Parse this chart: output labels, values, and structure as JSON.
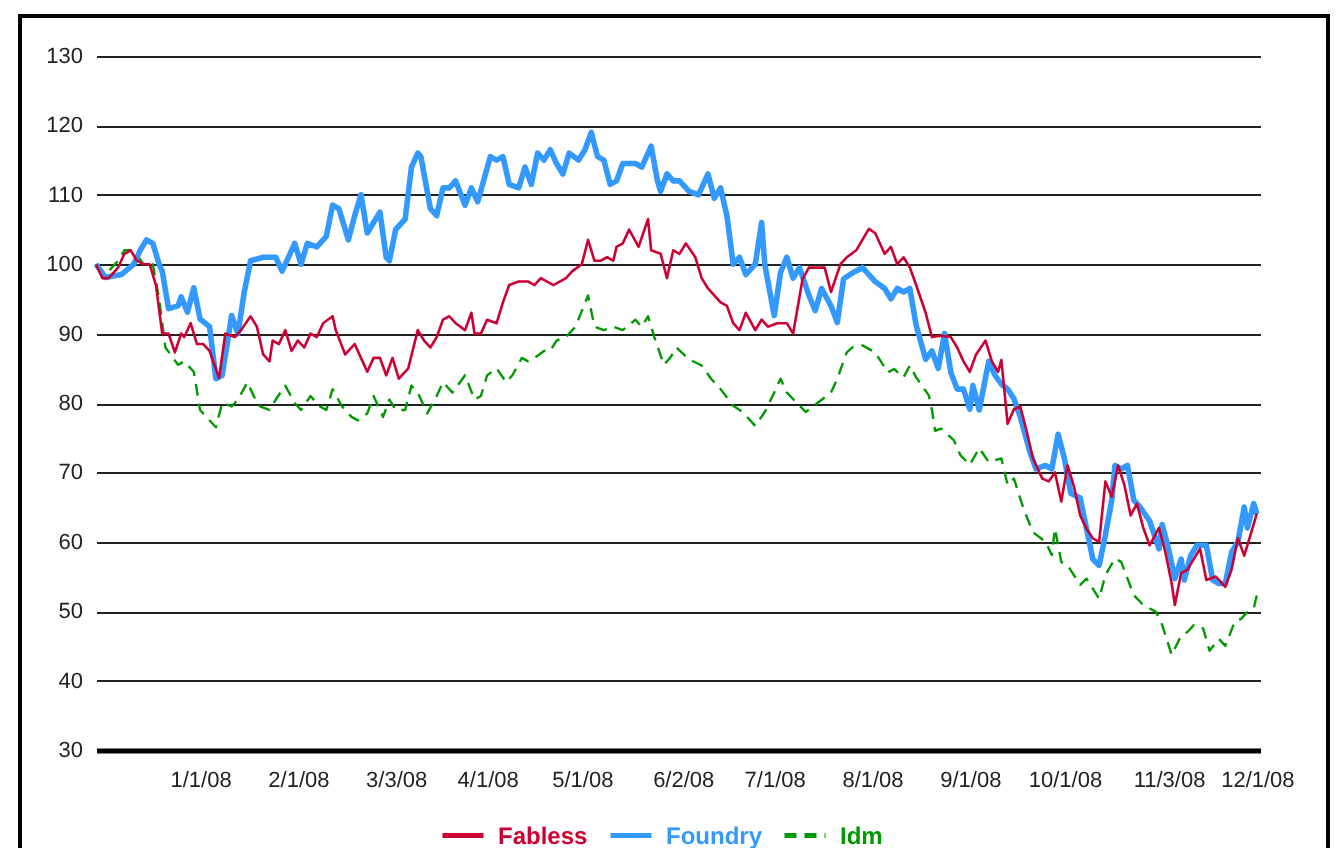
{
  "chart_data": {
    "type": "line",
    "legend": "bottom",
    "grid": "y",
    "marker": "none",
    "xlim": [
      "2007-11-29",
      "2008-12-02"
    ],
    "xticks": [
      {
        "value": "2008-01-01",
        "label": "1/1/08"
      },
      {
        "value": "2008-02-01",
        "label": "2/1/08"
      },
      {
        "value": "2008-03-03",
        "label": "3/3/08"
      },
      {
        "value": "2008-04-01",
        "label": "4/1/08"
      },
      {
        "value": "2008-05-01",
        "label": "5/1/08"
      },
      {
        "value": "2008-06-02",
        "label": "6/2/08"
      },
      {
        "value": "2008-07-01",
        "label": "7/1/08"
      },
      {
        "value": "2008-08-01",
        "label": "8/1/08"
      },
      {
        "value": "2008-09-01",
        "label": "9/1/08"
      },
      {
        "value": "2008-10-01",
        "label": "10/1/08"
      },
      {
        "value": "2008-11-03",
        "label": "11/3/08"
      },
      {
        "value": "2008-12-01",
        "label": "12/1/08"
      }
    ],
    "ylim": [
      30,
      130
    ],
    "yticks": [
      30,
      40,
      50,
      60,
      70,
      80,
      90,
      100,
      110,
      120,
      130
    ],
    "series": [
      {
        "name": "Fabless",
        "color": "#cc0033",
        "line_style": "solid",
        "x": [
          "2007-11-29",
          "2007-12-01",
          "2007-12-03",
          "2007-12-06",
          "2007-12-08",
          "2007-12-10",
          "2007-12-12",
          "2007-12-14",
          "2007-12-16",
          "2007-12-18",
          "2007-12-20",
          "2007-12-22",
          "2007-12-24",
          "2007-12-26",
          "2007-12-27",
          "2007-12-29",
          "2007-12-31",
          "2008-01-02",
          "2008-01-04",
          "2008-01-07",
          "2008-01-09",
          "2008-01-12",
          "2008-01-14",
          "2008-01-17",
          "2008-01-19",
          "2008-01-21",
          "2008-01-23",
          "2008-01-24",
          "2008-01-26",
          "2008-01-28",
          "2008-01-30",
          "2008-02-01",
          "2008-02-03",
          "2008-02-05",
          "2008-02-07",
          "2008-02-09",
          "2008-02-12",
          "2008-02-13",
          "2008-02-16",
          "2008-02-19",
          "2008-02-21",
          "2008-02-23",
          "2008-02-25",
          "2008-02-27",
          "2008-02-29",
          "2008-03-02",
          "2008-03-04",
          "2008-03-07",
          "2008-03-10",
          "2008-03-12",
          "2008-03-14",
          "2008-03-16",
          "2008-03-18",
          "2008-03-20",
          "2008-03-22",
          "2008-03-25",
          "2008-03-27",
          "2008-03-28",
          "2008-03-30",
          "2008-04-01",
          "2008-04-04",
          "2008-04-06",
          "2008-04-08",
          "2008-04-11",
          "2008-04-14",
          "2008-04-16",
          "2008-04-18",
          "2008-04-20",
          "2008-04-22",
          "2008-04-24",
          "2008-04-26",
          "2008-04-28",
          "2008-05-01",
          "2008-05-03",
          "2008-05-05",
          "2008-05-07",
          "2008-05-09",
          "2008-05-11",
          "2008-05-12",
          "2008-05-14",
          "2008-05-16",
          "2008-05-19",
          "2008-05-22",
          "2008-05-23",
          "2008-05-26",
          "2008-05-28",
          "2008-05-30",
          "2008-06-01",
          "2008-06-03",
          "2008-06-06",
          "2008-06-08",
          "2008-06-10",
          "2008-06-11",
          "2008-06-14",
          "2008-06-16",
          "2008-06-18",
          "2008-06-20",
          "2008-06-22",
          "2008-06-25",
          "2008-06-27",
          "2008-06-29",
          "2008-07-02",
          "2008-07-05",
          "2008-07-07",
          "2008-07-10",
          "2008-07-12",
          "2008-07-15",
          "2008-07-17",
          "2008-07-19",
          "2008-07-22",
          "2008-07-24",
          "2008-07-27",
          "2008-07-31",
          "2008-08-02",
          "2008-08-05",
          "2008-08-07",
          "2008-08-09",
          "2008-08-11",
          "2008-08-13",
          "2008-08-15",
          "2008-08-18",
          "2008-08-20",
          "2008-08-23",
          "2008-08-26",
          "2008-08-28",
          "2008-08-30",
          "2008-09-01",
          "2008-09-03",
          "2008-09-06",
          "2008-09-08",
          "2008-09-10",
          "2008-09-11",
          "2008-09-13",
          "2008-09-15",
          "2008-09-17",
          "2008-09-19",
          "2008-09-21",
          "2008-09-24",
          "2008-09-26",
          "2008-09-28",
          "2008-09-30",
          "2008-10-02",
          "2008-10-04",
          "2008-10-06",
          "2008-10-08",
          "2008-10-10",
          "2008-10-12",
          "2008-10-14",
          "2008-10-16",
          "2008-10-18",
          "2008-10-20",
          "2008-10-22",
          "2008-10-24",
          "2008-10-26",
          "2008-10-28",
          "2008-10-31",
          "2008-11-02",
          "2008-11-04",
          "2008-11-05",
          "2008-11-07",
          "2008-11-09",
          "2008-11-11",
          "2008-11-13",
          "2008-11-15",
          "2008-11-18",
          "2008-11-21",
          "2008-11-23",
          "2008-11-25",
          "2008-11-27",
          "2008-11-29",
          "2008-12-01"
        ],
        "values": [
          100,
          98,
          98,
          99.5,
          101.5,
          102,
          100.5,
          100,
          100,
          97,
          90,
          90,
          87.3,
          90,
          89.5,
          91.5,
          88.5,
          88.5,
          87.5,
          83.6,
          90,
          89.5,
          90.5,
          92.5,
          91,
          87,
          86,
          89,
          88.5,
          90.5,
          87.5,
          89,
          88,
          90,
          89.5,
          91.5,
          92.5,
          90.5,
          87,
          88.5,
          86.5,
          84.5,
          86.5,
          86.5,
          84,
          86.5,
          83.5,
          85,
          90.5,
          89,
          88,
          89.5,
          92,
          92.5,
          91.5,
          90.5,
          93,
          90,
          90,
          92,
          91.5,
          94.5,
          97,
          97.5,
          97.5,
          97,
          98,
          97.5,
          97,
          97.5,
          98,
          99,
          100,
          103.5,
          100.5,
          100.5,
          101,
          100.5,
          102.5,
          103,
          105,
          102.5,
          106.5,
          102,
          101.5,
          98,
          102,
          101.5,
          103,
          101,
          98,
          96.5,
          96,
          94.5,
          94,
          91.5,
          90.5,
          93,
          90.5,
          92,
          91,
          91.5,
          91.5,
          90,
          97.9,
          99.5,
          99.5,
          99.5,
          96,
          100,
          101,
          102,
          105.1,
          104.5,
          101.5,
          102.5,
          100,
          101,
          99.5,
          97,
          93,
          89.5,
          89.7,
          89.5,
          88,
          86,
          84.5,
          87,
          89,
          86,
          84.5,
          86.2,
          77,
          79.1,
          79.5,
          76,
          72,
          69.1,
          68.7,
          70,
          65.8,
          71,
          68,
          63.8,
          61.9,
          60.5,
          60,
          68.7,
          66.5,
          71,
          68.2,
          63.8,
          65.5,
          62,
          59.5,
          62,
          58.5,
          54,
          50.9,
          55.5,
          56,
          57.5,
          59,
          54.5,
          55,
          53.5,
          56,
          60.5,
          58,
          61,
          64.1
        ]
      },
      {
        "name": "Foundry",
        "color": "#3399ff",
        "line_style": "solid",
        "x": [
          "2007-11-29",
          "2007-12-02",
          "2007-12-07",
          "2007-12-11",
          "2007-12-13",
          "2007-12-15",
          "2007-12-17",
          "2007-12-19",
          "2007-12-20",
          "2007-12-22",
          "2007-12-25",
          "2007-12-26",
          "2007-12-28",
          "2007-12-30",
          "2008-01-01",
          "2008-01-04",
          "2008-01-06",
          "2008-01-08",
          "2008-01-11",
          "2008-01-13",
          "2008-01-15",
          "2008-01-17",
          "2008-01-21",
          "2008-01-25",
          "2008-01-27",
          "2008-01-31",
          "2008-02-02",
          "2008-02-04",
          "2008-02-07",
          "2008-02-10",
          "2008-02-12",
          "2008-02-14",
          "2008-02-17",
          "2008-02-19",
          "2008-02-21",
          "2008-02-23",
          "2008-02-25",
          "2008-02-27",
          "2008-02-29",
          "2008-03-01",
          "2008-03-03",
          "2008-03-06",
          "2008-03-08",
          "2008-03-10",
          "2008-03-11",
          "2008-03-14",
          "2008-03-16",
          "2008-03-18",
          "2008-03-20",
          "2008-03-22",
          "2008-03-25",
          "2008-03-27",
          "2008-03-29",
          "2008-04-02",
          "2008-04-04",
          "2008-04-06",
          "2008-04-08",
          "2008-04-11",
          "2008-04-13",
          "2008-04-15",
          "2008-04-17",
          "2008-04-19",
          "2008-04-21",
          "2008-04-23",
          "2008-04-25",
          "2008-04-27",
          "2008-04-30",
          "2008-05-02",
          "2008-05-04",
          "2008-05-06",
          "2008-05-08",
          "2008-05-10",
          "2008-05-12",
          "2008-05-14",
          "2008-05-18",
          "2008-05-20",
          "2008-05-23",
          "2008-05-25",
          "2008-05-26",
          "2008-05-28",
          "2008-05-30",
          "2008-06-01",
          "2008-06-04",
          "2008-06-07",
          "2008-06-10",
          "2008-06-12",
          "2008-06-14",
          "2008-06-16",
          "2008-06-18",
          "2008-06-20",
          "2008-06-22",
          "2008-06-25",
          "2008-06-27",
          "2008-06-28",
          "2008-07-01",
          "2008-07-03",
          "2008-07-05",
          "2008-07-07",
          "2008-07-09",
          "2008-07-12",
          "2008-07-14",
          "2008-07-16",
          "2008-07-19",
          "2008-07-21",
          "2008-07-23",
          "2008-07-26",
          "2008-07-29",
          "2008-08-02",
          "2008-08-05",
          "2008-08-07",
          "2008-08-09",
          "2008-08-11",
          "2008-08-13",
          "2008-08-15",
          "2008-08-18",
          "2008-08-20",
          "2008-08-22",
          "2008-08-24",
          "2008-08-26",
          "2008-08-28",
          "2008-08-30",
          "2008-09-01",
          "2008-09-02",
          "2008-09-04",
          "2008-09-07",
          "2008-09-09",
          "2008-09-11",
          "2008-09-13",
          "2008-09-15",
          "2008-09-17",
          "2008-09-20",
          "2008-09-22",
          "2008-09-25",
          "2008-09-27",
          "2008-09-29",
          "2008-10-01",
          "2008-10-03",
          "2008-10-06",
          "2008-10-08",
          "2008-10-10",
          "2008-10-12",
          "2008-10-14",
          "2008-10-16",
          "2008-10-17",
          "2008-10-19",
          "2008-10-21",
          "2008-10-23",
          "2008-10-25",
          "2008-10-28",
          "2008-10-31",
          "2008-11-01",
          "2008-11-03",
          "2008-11-05",
          "2008-11-07",
          "2008-11-08",
          "2008-11-10",
          "2008-11-12",
          "2008-11-15",
          "2008-11-17",
          "2008-11-19",
          "2008-11-21",
          "2008-11-23",
          "2008-11-25",
          "2008-11-27",
          "2008-11-28",
          "2008-11-30",
          "2008-12-01"
        ],
        "values": [
          100,
          98.1,
          98.5,
          100,
          102,
          103.5,
          103,
          100,
          99,
          93.6,
          94,
          95.3,
          93.1,
          96.6,
          92.1,
          91,
          83.5,
          84,
          92.6,
          90,
          96,
          100.5,
          101,
          101,
          99,
          103,
          100,
          103,
          102.5,
          104,
          108.5,
          108,
          103.5,
          107,
          110,
          104.5,
          106,
          107.5,
          101,
          100.5,
          105,
          106.5,
          114,
          116,
          115.5,
          108,
          107,
          111,
          111,
          112,
          108.5,
          111,
          109,
          115.5,
          115,
          115.5,
          111.5,
          111,
          114,
          111.5,
          116,
          115,
          116.5,
          114.5,
          113,
          116,
          115,
          116.5,
          119,
          115.5,
          115,
          111.5,
          112,
          114.5,
          114.5,
          114,
          117,
          112,
          110.5,
          113,
          112,
          112,
          110.5,
          110,
          113,
          109.5,
          111,
          107,
          100,
          101,
          98.5,
          100,
          106,
          100,
          92.6,
          98.8,
          101,
          98,
          99.5,
          95.5,
          93.3,
          96.5,
          94,
          91.6,
          97.9,
          98.8,
          99.5,
          97.5,
          96.5,
          95,
          96.5,
          96,
          96.5,
          91.2,
          86.3,
          87.5,
          85,
          90,
          84.4,
          82,
          82,
          79.1,
          82.5,
          79,
          86,
          84,
          82.7,
          82,
          80.6,
          78,
          73,
          70.5,
          71,
          70.5,
          75.5,
          72,
          67,
          66.3,
          61.9,
          57.5,
          56.6,
          61,
          66,
          71,
          70.5,
          71,
          66,
          65,
          63,
          59,
          62.5,
          59,
          54.7,
          57.5,
          54.5,
          58,
          59.5,
          59.5,
          54.5,
          54,
          54,
          58.5,
          60,
          65,
          62,
          65.5,
          64
        ]
      },
      {
        "name": "Idm",
        "color": "#009900",
        "line_style": "dashed",
        "x": [
          "2007-11-29",
          "2007-12-02",
          "2007-12-06",
          "2007-12-08",
          "2007-12-11",
          "2007-12-14",
          "2007-12-17",
          "2007-12-19",
          "2007-12-21",
          "2007-12-25",
          "2007-12-27",
          "2007-12-30",
          "2008-01-01",
          "2008-01-03",
          "2008-01-06",
          "2008-01-08",
          "2008-01-11",
          "2008-01-13",
          "2008-01-16",
          "2008-01-18",
          "2008-01-20",
          "2008-01-23",
          "2008-01-25",
          "2008-01-28",
          "2008-01-31",
          "2008-02-02",
          "2008-02-05",
          "2008-02-08",
          "2008-02-10",
          "2008-02-12",
          "2008-02-15",
          "2008-02-18",
          "2008-02-20",
          "2008-02-23",
          "2008-02-25",
          "2008-02-28",
          "2008-03-01",
          "2008-03-03",
          "2008-03-06",
          "2008-03-08",
          "2008-03-10",
          "2008-03-13",
          "2008-03-16",
          "2008-03-18",
          "2008-03-21",
          "2008-03-25",
          "2008-03-28",
          "2008-03-30",
          "2008-04-01",
          "2008-04-04",
          "2008-04-07",
          "2008-04-09",
          "2008-04-12",
          "2008-04-14",
          "2008-04-16",
          "2008-04-19",
          "2008-04-21",
          "2008-04-23",
          "2008-04-26",
          "2008-04-29",
          "2008-05-03",
          "2008-05-05",
          "2008-05-08",
          "2008-05-11",
          "2008-05-14",
          "2008-05-18",
          "2008-05-20",
          "2008-05-22",
          "2008-05-24",
          "2008-05-27",
          "2008-05-29",
          "2008-05-31",
          "2008-06-04",
          "2008-06-08",
          "2008-06-11",
          "2008-06-14",
          "2008-06-18",
          "2008-06-21",
          "2008-06-25",
          "2008-06-28",
          "2008-07-01",
          "2008-07-03",
          "2008-07-05",
          "2008-07-08",
          "2008-07-11",
          "2008-07-15",
          "2008-07-19",
          "2008-07-21",
          "2008-07-24",
          "2008-07-26",
          "2008-07-29",
          "2008-08-02",
          "2008-08-06",
          "2008-08-08",
          "2008-08-11",
          "2008-08-13",
          "2008-08-15",
          "2008-08-19",
          "2008-08-20",
          "2008-08-21",
          "2008-08-23",
          "2008-08-27",
          "2008-08-29",
          "2008-09-01",
          "2008-09-04",
          "2008-09-07",
          "2008-09-11",
          "2008-09-13",
          "2008-09-15",
          "2008-09-18",
          "2008-09-21",
          "2008-09-25",
          "2008-09-27",
          "2008-09-28",
          "2008-09-30",
          "2008-10-02",
          "2008-10-04",
          "2008-10-06",
          "2008-10-08",
          "2008-10-12",
          "2008-10-14",
          "2008-10-17",
          "2008-10-19",
          "2008-10-21",
          "2008-10-23",
          "2008-10-26",
          "2008-10-30",
          "2008-11-01",
          "2008-11-04",
          "2008-11-07",
          "2008-11-09",
          "2008-11-11",
          "2008-11-14",
          "2008-11-16",
          "2008-11-19",
          "2008-11-21",
          "2008-11-24",
          "2008-11-26",
          "2008-11-28",
          "2008-11-30",
          "2008-12-01"
        ],
        "values": [
          100,
          98.5,
          100.5,
          102,
          102,
          100,
          100,
          95,
          88,
          85.5,
          86,
          84.5,
          79,
          78,
          76.5,
          80,
          79.5,
          80.5,
          83,
          81,
          79.5,
          79,
          80.5,
          82.5,
          80,
          79,
          81,
          79.5,
          79,
          82,
          79.5,
          78,
          77.5,
          78.5,
          81,
          78,
          80.5,
          79,
          79,
          82.5,
          81.5,
          78.5,
          81,
          83,
          81.5,
          84,
          80.5,
          81,
          84,
          85,
          83,
          84,
          86.5,
          86,
          86.5,
          87.5,
          87.5,
          89,
          89.5,
          91,
          95.5,
          91,
          90.5,
          91,
          90.5,
          92,
          91,
          92.5,
          89.5,
          85.5,
          86.5,
          88,
          86.3,
          85.4,
          83.5,
          82,
          79.6,
          78.7,
          76.7,
          78.7,
          81.5,
          83.5,
          81.5,
          80.1,
          78.7,
          80.1,
          81.5,
          83.5,
          87.3,
          88.1,
          88.3,
          87.3,
          84.4,
          84.9,
          83.7,
          85.4,
          83.7,
          81.1,
          79,
          76,
          76.3,
          74.6,
          72.5,
          71.1,
          73.5,
          71.5,
          72,
          68.2,
          69.1,
          64.8,
          61.4,
          60,
          58.1,
          61.9,
          57.1,
          56.6,
          55.2,
          53.8,
          54.7,
          51.8,
          55.2,
          57.6,
          57.1,
          54.7,
          52.3,
          50.9,
          49.9,
          48,
          43.7,
          46.5,
          47,
          48,
          47.5,
          44.3,
          46,
          45,
          48.5,
          48.9,
          49.9,
          50.4,
          52.3
        ]
      }
    ]
  }
}
